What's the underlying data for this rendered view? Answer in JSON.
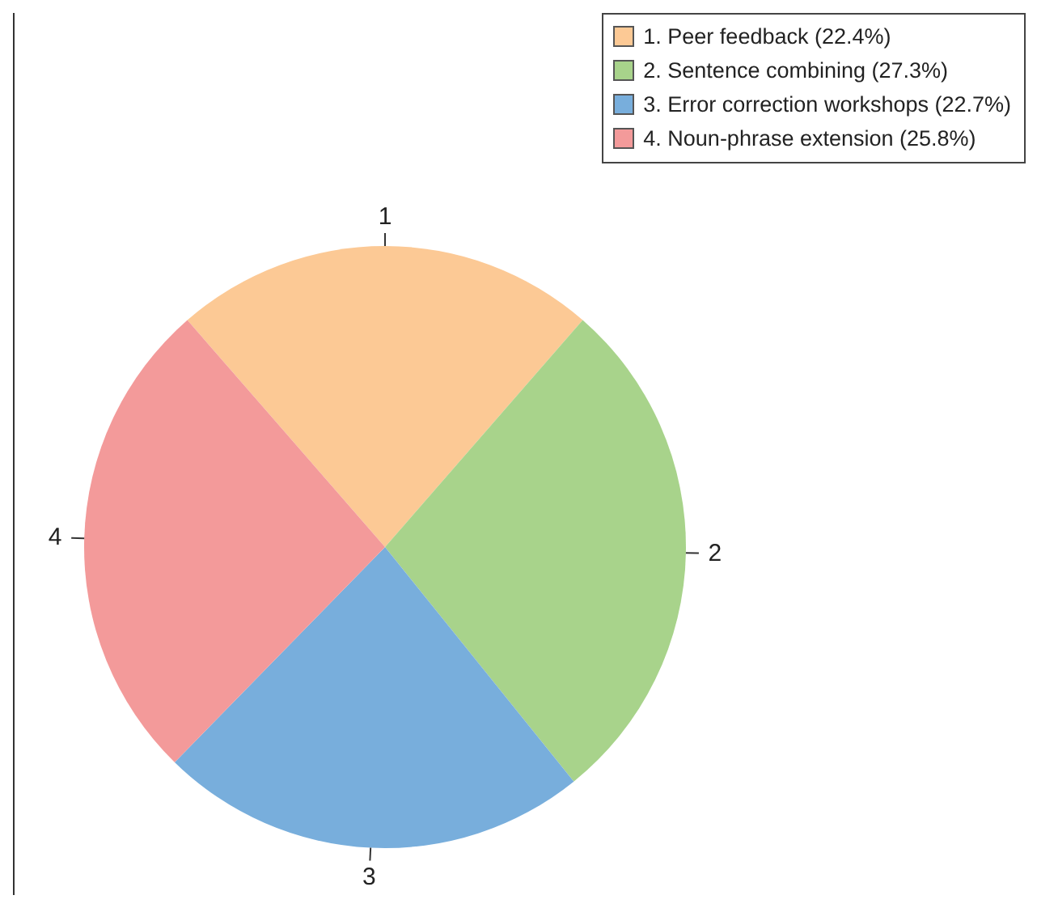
{
  "chart_data": {
    "type": "pie",
    "categories": [
      "1. Peer feedback (22.4%)",
      "2. Sentence combining (27.3%)",
      "3. Error correction workshops (22.7%)",
      "4. Noun-phrase extension (25.8%)"
    ],
    "values": [
      22.4,
      27.3,
      22.7,
      25.8
    ],
    "colors": [
      "#fcc995",
      "#a8d38b",
      "#78aedc",
      "#f39a9a"
    ],
    "annotations": [
      {
        "text": "1",
        "x": "1. Peer feedback (22.4%)"
      },
      {
        "text": "2",
        "x": "2. Sentence combining (27.3%)"
      },
      {
        "text": "3",
        "x": "3. Error correction workshops (22.7%)"
      },
      {
        "text": "4",
        "x": "4. Noun-phrase extension (25.8%)"
      }
    ],
    "legend": "top right"
  }
}
